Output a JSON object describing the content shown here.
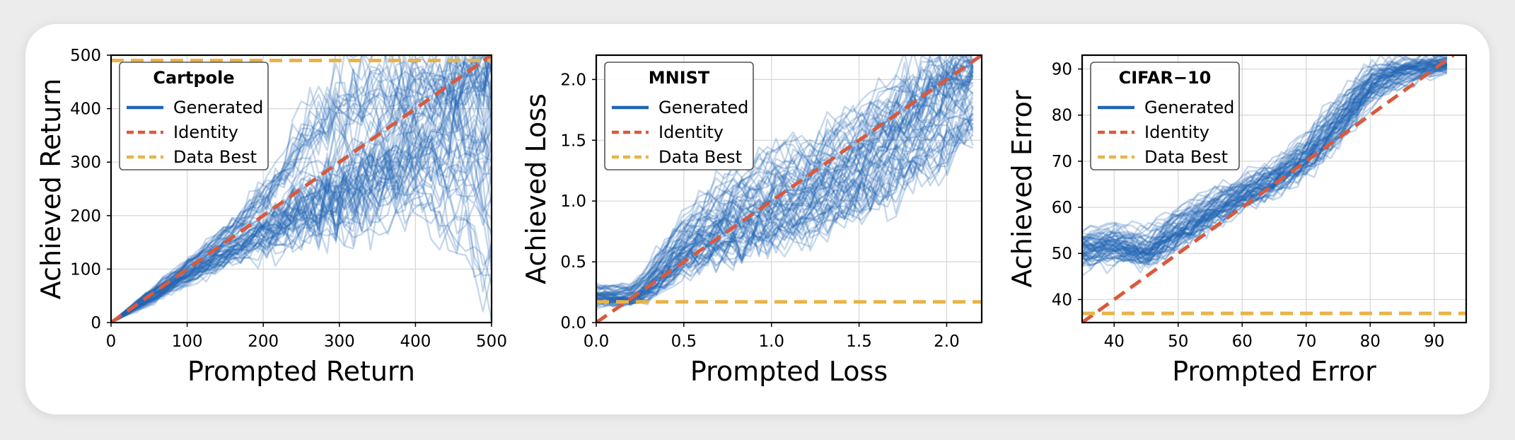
{
  "colors": {
    "generated": "#1f63b5",
    "identity": "#d9593d",
    "data_best": "#e8b347",
    "grid": "#d6d6d6"
  },
  "chart_data": [
    {
      "type": "line",
      "id": "cartpole",
      "title": "Cartpole",
      "xlabel": "Prompted Return",
      "ylabel": "Achieved Return",
      "xlim": [
        0,
        500
      ],
      "ylim": [
        0,
        500
      ],
      "xticks": [
        0,
        100,
        200,
        300,
        400,
        500
      ],
      "yticks": [
        0,
        100,
        200,
        300,
        400,
        500
      ],
      "grid": true,
      "legend_position": "top-left",
      "legend": [
        "Generated",
        "Identity",
        "Data Best"
      ],
      "series": [
        {
          "name": "Generated",
          "x": [
            0,
            50,
            100,
            150,
            200,
            250,
            300,
            350,
            400,
            450,
            500
          ],
          "y_median": [
            0,
            48,
            95,
            140,
            180,
            225,
            265,
            320,
            370,
            430,
            470
          ],
          "y_upper": [
            0,
            60,
            115,
            180,
            260,
            380,
            480,
            480,
            480,
            480,
            480
          ],
          "y_lower": [
            0,
            35,
            75,
            110,
            140,
            170,
            190,
            210,
            230,
            180,
            80
          ]
        },
        {
          "name": "Identity",
          "x": [
            0,
            500
          ],
          "y": [
            0,
            500
          ]
        },
        {
          "name": "Data Best",
          "y_constant": 490
        }
      ]
    },
    {
      "type": "line",
      "id": "mnist",
      "title": "MNIST",
      "xlabel": "Prompted Loss",
      "ylabel": "Achieved Loss",
      "xlim": [
        0,
        2.2
      ],
      "ylim": [
        0,
        2.2
      ],
      "xticks": [
        0.0,
        0.5,
        1.0,
        1.5,
        2.0
      ],
      "yticks": [
        0.0,
        0.5,
        1.0,
        1.5,
        2.0
      ],
      "grid": true,
      "legend_position": "top-left",
      "legend": [
        "Generated",
        "Identity",
        "Data Best"
      ],
      "series": [
        {
          "name": "Generated",
          "x": [
            0.0,
            0.2,
            0.3,
            0.5,
            0.75,
            1.0,
            1.25,
            1.5,
            1.75,
            2.0,
            2.15
          ],
          "y_median": [
            0.2,
            0.2,
            0.3,
            0.6,
            0.8,
            0.95,
            1.1,
            1.3,
            1.6,
            1.9,
            2.05
          ],
          "y_upper": [
            0.3,
            0.3,
            0.45,
            0.85,
            1.2,
            1.4,
            1.5,
            1.75,
            2.0,
            2.2,
            2.2
          ],
          "y_lower": [
            0.15,
            0.15,
            0.2,
            0.4,
            0.55,
            0.65,
            0.75,
            0.9,
            1.1,
            1.3,
            1.5
          ]
        },
        {
          "name": "Identity",
          "x": [
            0,
            2.2
          ],
          "y": [
            0,
            2.2
          ]
        },
        {
          "name": "Data Best",
          "y_constant": 0.17
        }
      ]
    },
    {
      "type": "line",
      "id": "cifar10",
      "title": "CIFAR−10",
      "xlabel": "Prompted Error",
      "ylabel": "Achieved Error",
      "xlim": [
        35,
        95
      ],
      "ylim": [
        35,
        93
      ],
      "xticks": [
        40,
        50,
        60,
        70,
        80,
        90
      ],
      "yticks": [
        40,
        50,
        60,
        70,
        80,
        90
      ],
      "grid": true,
      "legend_position": "top-left",
      "legend": [
        "Generated",
        "Identity",
        "Data Best"
      ],
      "series": [
        {
          "name": "Generated",
          "x": [
            35,
            40,
            45,
            50,
            55,
            60,
            65,
            70,
            75,
            80,
            85,
            90,
            92
          ],
          "y_median": [
            51,
            52,
            50,
            55,
            59,
            63,
            66,
            71,
            78,
            87,
            90,
            91,
            91
          ],
          "y_upper": [
            55,
            56,
            55,
            60,
            63,
            67,
            70,
            76,
            84,
            91,
            92,
            93,
            93
          ],
          "y_lower": [
            47,
            48,
            47,
            51,
            55,
            59,
            62,
            67,
            73,
            82,
            86,
            88,
            89
          ]
        },
        {
          "name": "Identity",
          "x": [
            35,
            93
          ],
          "y": [
            35,
            93
          ]
        },
        {
          "name": "Data Best",
          "y_constant": 37
        }
      ]
    }
  ]
}
